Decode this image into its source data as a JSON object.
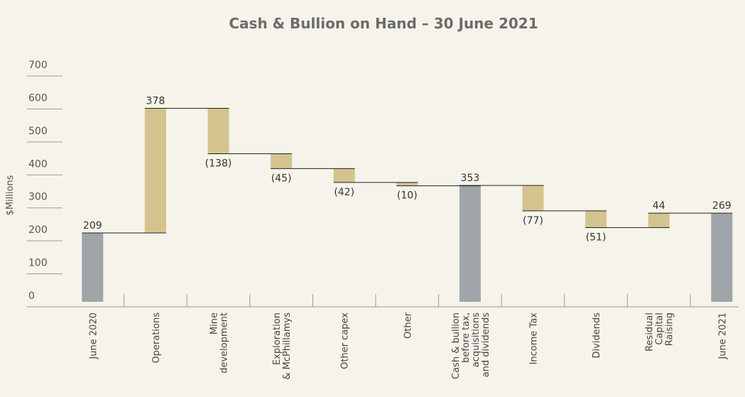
{
  "chart_data": {
    "type": "waterfall",
    "title": "Cash & Bullion on Hand – 30 June 2021",
    "ylabel": "$Millions",
    "categories": [
      [
        "June 2020"
      ],
      [
        "Operations"
      ],
      [
        "Mine",
        "development"
      ],
      [
        "Exploration",
        "& McPhillamys"
      ],
      [
        "Other capex"
      ],
      [
        "Other"
      ],
      [
        "Cash & bullion",
        "before tax,",
        "acquisitions",
        "and dividends"
      ],
      [
        "Income Tax"
      ],
      [
        "Dividends"
      ],
      [
        "Residual",
        "Capital",
        "Raising"
      ],
      [
        "June 2021"
      ]
    ],
    "values": [
      209,
      378,
      -138,
      -45,
      -42,
      -10,
      353,
      -77,
      -51,
      44,
      269
    ],
    "value_labels": [
      "209",
      "378",
      "(138)",
      "(45)",
      "(42)",
      "(10)",
      "353",
      "(77)",
      "(51)",
      "44",
      "269"
    ],
    "measure": [
      "total",
      "relative",
      "relative",
      "relative",
      "relative",
      "relative",
      "total",
      "relative",
      "relative",
      "relative",
      "total"
    ],
    "total_color": "#a0a5aa",
    "change_color": "#d3c48f",
    "ylim": [
      0,
      700
    ],
    "yticks": [
      0,
      100,
      200,
      300,
      400,
      500,
      600,
      700
    ]
  }
}
